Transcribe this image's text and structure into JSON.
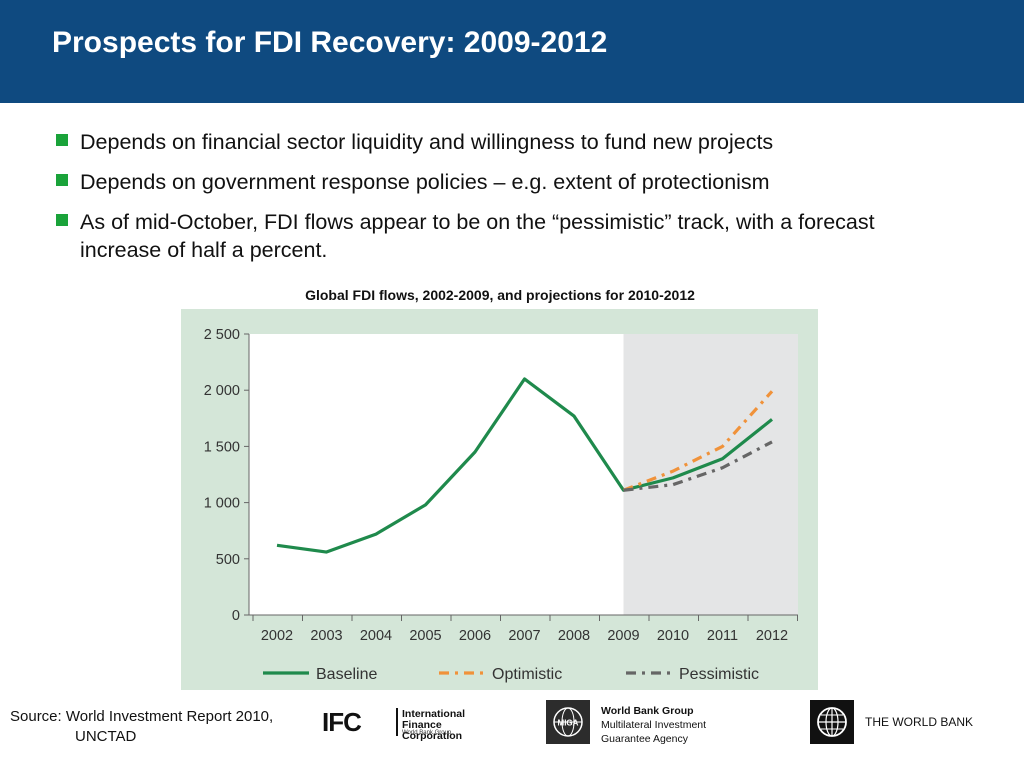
{
  "slide": {
    "title": "Prospects for FDI Recovery: 2009-2012",
    "bullets": [
      "Depends on financial sector liquidity and willingness to fund new projects",
      "Depends on government response policies – e.g. extent of protectionism",
      "As of mid-October, FDI flows appear to be on the “pessimistic” track, with a forecast increase of half a percent."
    ],
    "bullet_color": "#1aa33a",
    "header_color": "#0f4a80"
  },
  "chart_data": {
    "type": "line",
    "title": "Global FDI flows, 2002-2009, and projections for 2010-2012",
    "x": [
      "2002",
      "2003",
      "2004",
      "2005",
      "2006",
      "2007",
      "2008",
      "2009",
      "2010",
      "2011",
      "2012"
    ],
    "ylim": [
      0,
      2500
    ],
    "yticks": [
      0,
      500,
      1000,
      1500,
      2000,
      2500
    ],
    "ytick_labels": [
      "0",
      "500",
      "1 000",
      "1 500",
      "2 000",
      "2 500"
    ],
    "projection_start": "2009",
    "legend_position": "bottom",
    "series": [
      {
        "name": "Baseline",
        "style": "solid",
        "color": "#1f8a4c",
        "x": [
          "2002",
          "2003",
          "2004",
          "2005",
          "2006",
          "2007",
          "2008",
          "2009",
          "2010",
          "2011",
          "2012"
        ],
        "values": [
          620,
          560,
          720,
          980,
          1450,
          2100,
          1770,
          1110,
          1220,
          1390,
          1740
        ]
      },
      {
        "name": "Optimistic",
        "style": "dash-dot",
        "color": "#f0923a",
        "x": [
          "2009",
          "2010",
          "2011",
          "2012"
        ],
        "values": [
          1110,
          1280,
          1500,
          1990
        ]
      },
      {
        "name": "Pessimistic",
        "style": "dash-dot",
        "color": "#666666",
        "x": [
          "2009",
          "2010",
          "2011",
          "2012"
        ],
        "values": [
          1110,
          1160,
          1310,
          1540
        ]
      }
    ]
  },
  "footer": {
    "source_line1": "Source: World Investment Report 2010,",
    "source_line2": "UNCTAD",
    "ifc_mark": "IFC",
    "ifc_name_line1": "International",
    "ifc_name_line2": "Finance Corporation",
    "ifc_sub": "World Bank Group",
    "miga_mark": "MIGA",
    "miga_line1": "World Bank Group",
    "miga_line2": "Multilateral Investment",
    "miga_line3": "Guarantee Agency",
    "world_bank": "THE WORLD BANK"
  }
}
